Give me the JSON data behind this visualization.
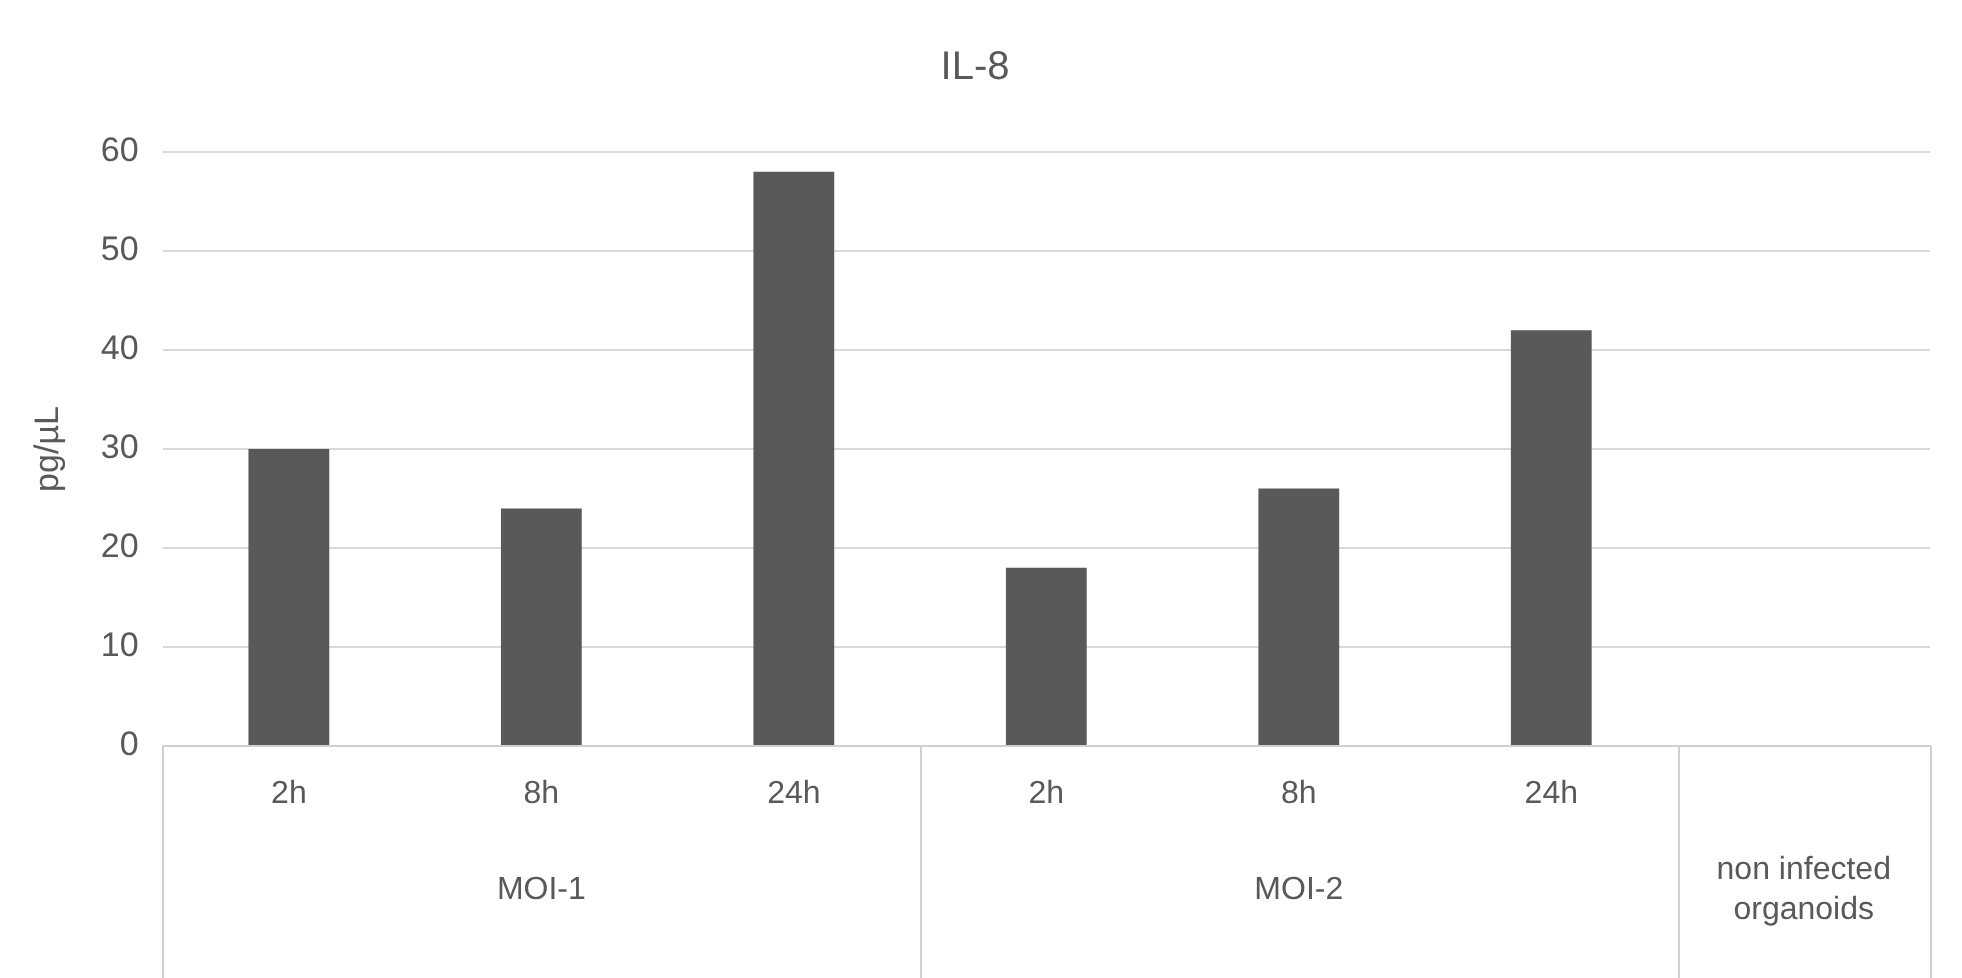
{
  "chart_data": {
    "type": "bar",
    "title": "IL-8",
    "ylabel": "pg/µL",
    "categories": [
      "2h",
      "8h",
      "24h",
      "2h",
      "8h",
      "24h",
      null
    ],
    "values": [
      30,
      24,
      58,
      18,
      26,
      42,
      null
    ],
    "color": "#595959",
    "ylim": [
      0,
      60
    ],
    "yticks": [
      0,
      10,
      20,
      30,
      40,
      50,
      60
    ],
    "grid": "y",
    "legend": false,
    "annotations": [
      "MOI-1",
      "MOI-2",
      "non infected organoids"
    ]
  }
}
